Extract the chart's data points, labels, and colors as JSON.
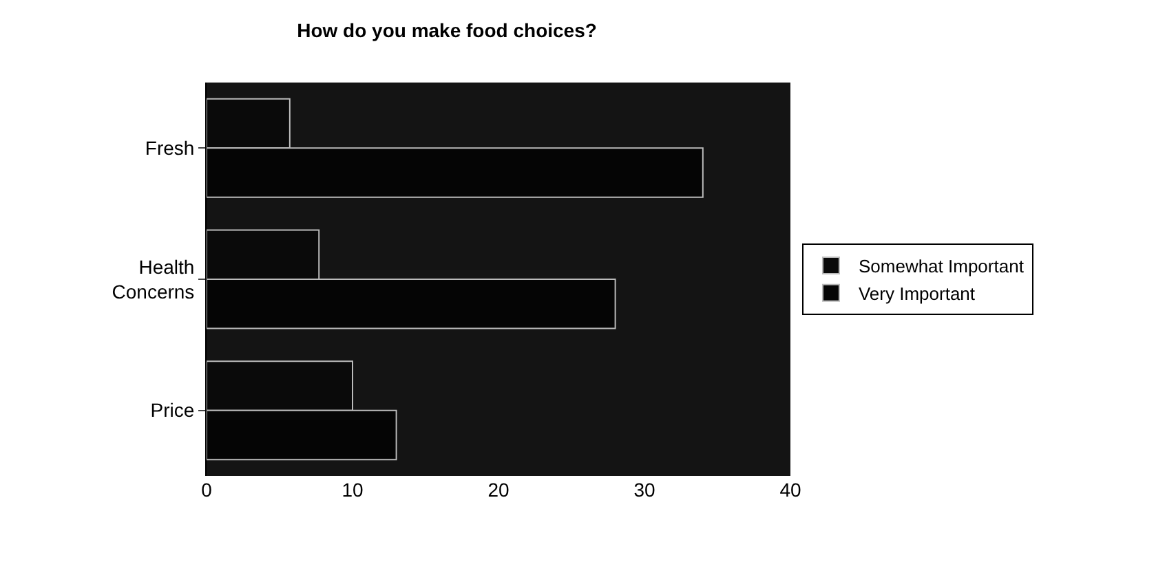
{
  "chart_data": {
    "type": "bar",
    "orientation": "horizontal",
    "title": "How do you make food choices?",
    "categories": [
      "Fresh",
      "Health Concerns",
      "Price"
    ],
    "series": [
      {
        "name": "Somewhat Important",
        "color": "#0a0a0a",
        "values": [
          5.7,
          7.7,
          10
        ]
      },
      {
        "name": "Very Important",
        "color": "#050505",
        "values": [
          34,
          28,
          13
        ]
      }
    ],
    "xlim": [
      0,
      40
    ],
    "xticks": [
      0,
      10,
      20,
      30,
      40
    ],
    "grid": false,
    "legend": "right"
  }
}
